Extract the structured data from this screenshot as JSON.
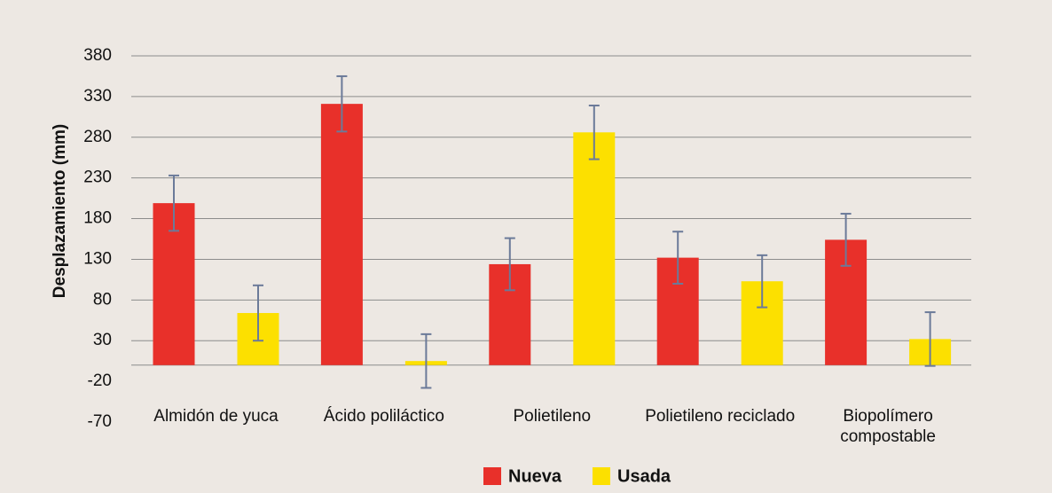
{
  "chart_data": {
    "type": "bar",
    "y_label": "Desplazamiento (mm)",
    "categories": [
      "Almidón de yuca",
      "Ácido poliláctico",
      "Polietileno",
      "Polietileno reciclado",
      "Biopolímero compostable"
    ],
    "series": [
      {
        "name": "Nueva",
        "color": "#e8302a",
        "values": [
          199,
          321,
          124,
          132,
          154
        ],
        "errors": [
          34,
          34,
          32,
          32,
          32
        ]
      },
      {
        "name": "Usada",
        "color": "#fce000",
        "values": [
          64,
          5,
          286,
          103,
          32
        ],
        "errors": [
          34,
          33,
          33,
          32,
          33
        ]
      }
    ],
    "ylim": [
      -70,
      380
    ],
    "yticks": [
      380,
      330,
      280,
      230,
      180,
      130,
      80,
      30,
      -20,
      -70
    ],
    "grid": true,
    "legend": "bottom"
  }
}
